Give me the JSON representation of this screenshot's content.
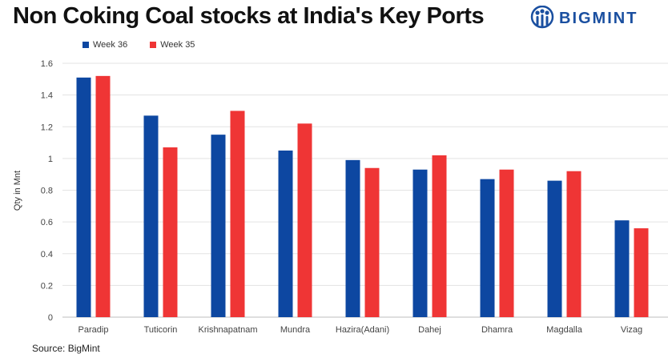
{
  "title": "Non Coking Coal stocks at India's Key Ports",
  "brand": {
    "name": "BIGMINT",
    "icon": "bigmint-logo-icon",
    "color": "#1a4fa0"
  },
  "source": "Source: BigMint",
  "chart_data": {
    "type": "bar",
    "title": "Non Coking Coal stocks at India's Key Ports",
    "xlabel": "",
    "ylabel": "Qty in Mnt",
    "ylim": [
      0,
      1.6
    ],
    "yticks": [
      "0",
      "0.2",
      "0.4",
      "0.6",
      "0.8",
      "1",
      "1.2",
      "1.4",
      "1.6"
    ],
    "grid": true,
    "legend": "top-left",
    "categories": [
      "Paradip",
      "Tuticorin",
      "Krishnapatnam",
      "Mundra",
      "Hazira(Adani)",
      "Dahej",
      "Dhamra",
      "Magdalla",
      "Vizag"
    ],
    "series": [
      {
        "name": "Week 36",
        "color": "#0d47a1",
        "values": [
          1.51,
          1.27,
          1.15,
          1.05,
          0.99,
          0.93,
          0.87,
          0.86,
          0.61
        ]
      },
      {
        "name": "Week 35",
        "color": "#ef3535",
        "values": [
          1.52,
          1.07,
          1.3,
          1.22,
          0.94,
          1.02,
          0.93,
          0.92,
          0.56
        ]
      }
    ]
  }
}
